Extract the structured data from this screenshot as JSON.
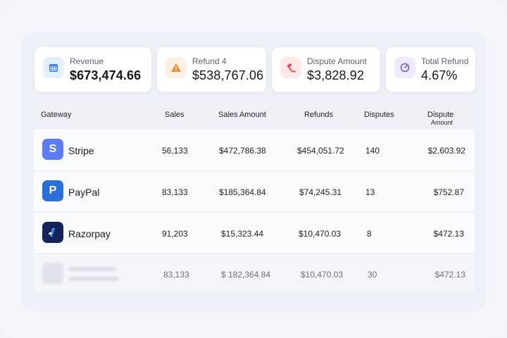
{
  "stats": [
    {
      "label": "Revenue",
      "value": "$673,474.66",
      "icon": "calendar-icon",
      "color": "#3b82f6",
      "bg": "#e6efff"
    },
    {
      "label": "Refund 4",
      "value": "$538,767.06",
      "icon": "warning-icon",
      "color": "#f08a24",
      "bg": "#fff0e3"
    },
    {
      "label": "Dispute Amount",
      "value": "$3,828.92",
      "icon": "gavel-icon",
      "color": "#e04a57",
      "bg": "#fde8ea"
    },
    {
      "label": "Total Refund",
      "value": "4.67%",
      "icon": "gauge-icon",
      "color": "#7c5cd6",
      "bg": "#efeafc"
    }
  ],
  "table": {
    "headers": {
      "gateway": "Gateway",
      "sales": "Sales",
      "sales_amount": "Sales Amount",
      "refunds": "Refunds",
      "disputes": "Disputes",
      "dispute": "Dispute",
      "dispute_sub": "Amount"
    },
    "rows": [
      {
        "name": "Stripe",
        "logo_letter": "S",
        "logo_color": "#5b7cf5",
        "sales": "56,133",
        "sales_amount": "$472,786.38",
        "refunds": "$454,051.72",
        "disputes": "140",
        "dispute_amount": "$2,603.92"
      },
      {
        "name": "PayPal",
        "logo_letter": "P",
        "logo_color": "#2a6fd6",
        "sales": "83,133",
        "sales_amount": "$185,364.84",
        "refunds": "$74,245.31",
        "disputes": "13",
        "dispute_amount": "$752.87"
      },
      {
        "name": "Razorpay",
        "logo_letter": "",
        "logo_color": "#14245a",
        "sales": "91,203",
        "sales_amount": "$15,323.44",
        "refunds": "$10,470.03",
        "disputes": "8",
        "dispute_amount": "$472.13"
      },
      {
        "name": "",
        "logo_letter": "",
        "logo_color": "",
        "sales": "83,133",
        "sales_amount": "$ 182,364.84",
        "refunds": "$10,470.03",
        "disputes": "30",
        "dispute_amount": "$472.13"
      }
    ]
  }
}
